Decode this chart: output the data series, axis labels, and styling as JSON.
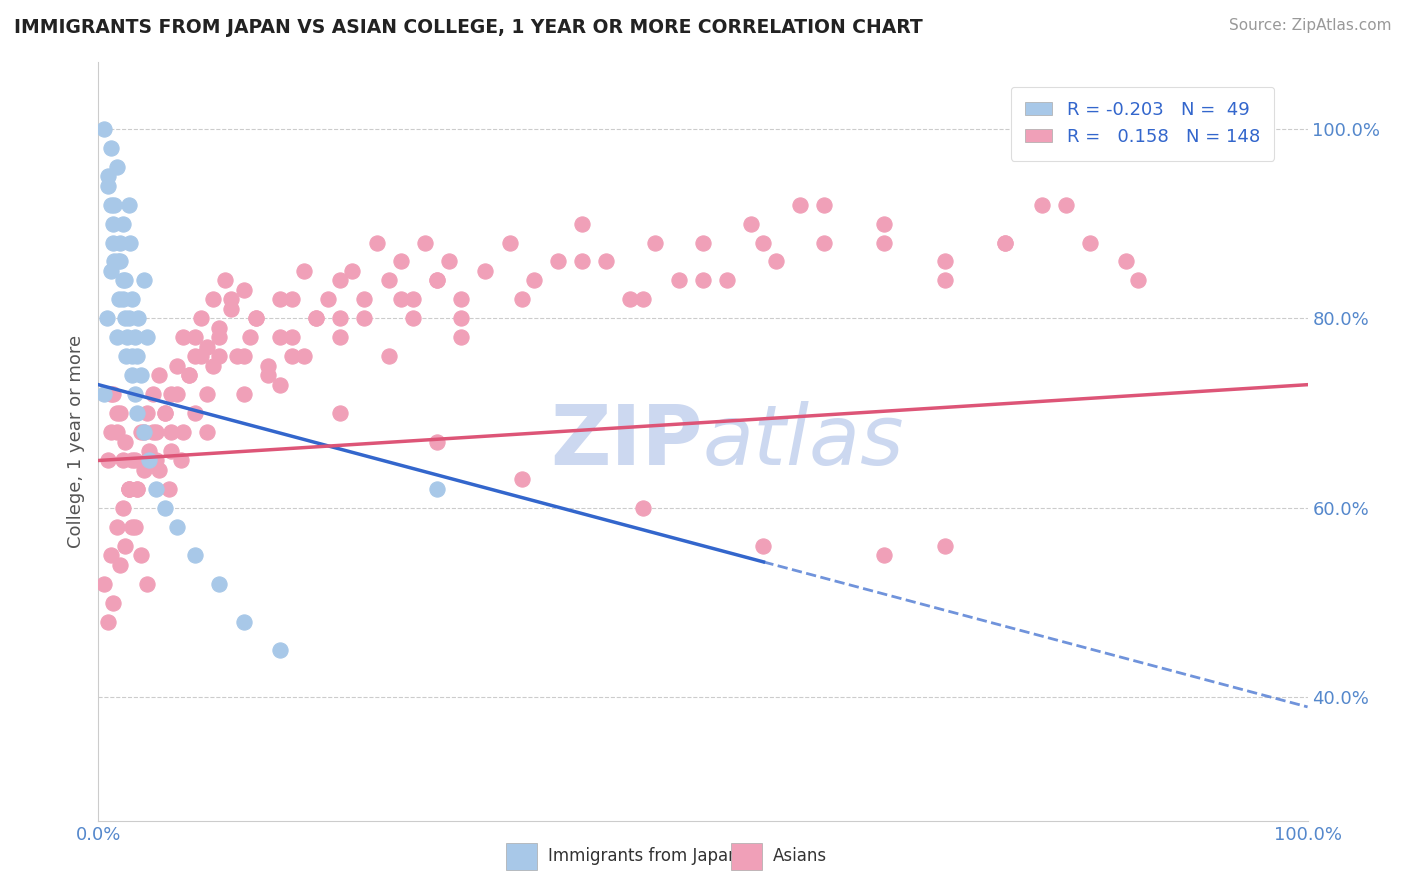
{
  "title": "IMMIGRANTS FROM JAPAN VS ASIAN COLLEGE, 1 YEAR OR MORE CORRELATION CHART",
  "source_text": "Source: ZipAtlas.com",
  "ylabel": "College, 1 year or more",
  "xlim": [
    0.0,
    1.0
  ],
  "ylim": [
    0.27,
    1.07
  ],
  "ytick_labels": [
    "40.0%",
    "60.0%",
    "80.0%",
    "100.0%"
  ],
  "ytick_values": [
    0.4,
    0.6,
    0.8,
    1.0
  ],
  "xtick_labels": [
    "0.0%",
    "100.0%"
  ],
  "xtick_values": [
    0.0,
    1.0
  ],
  "legend_r_blue": "-0.203",
  "legend_n_blue": "49",
  "legend_r_pink": "0.158",
  "legend_n_pink": "148",
  "blue_color": "#a8c8e8",
  "pink_color": "#f0a0b8",
  "blue_line_color": "#3366cc",
  "pink_line_color": "#dd5577",
  "watermark_color": "#ccd8f0",
  "blue_scatter_x": [
    0.005,
    0.007,
    0.01,
    0.012,
    0.013,
    0.015,
    0.017,
    0.018,
    0.02,
    0.022,
    0.023,
    0.025,
    0.026,
    0.028,
    0.03,
    0.032,
    0.033,
    0.035,
    0.038,
    0.04,
    0.008,
    0.01,
    0.012,
    0.015,
    0.018,
    0.02,
    0.022,
    0.025,
    0.028,
    0.03,
    0.005,
    0.008,
    0.01,
    0.013,
    0.016,
    0.02,
    0.024,
    0.028,
    0.032,
    0.038,
    0.042,
    0.048,
    0.055,
    0.065,
    0.08,
    0.1,
    0.12,
    0.15,
    0.28
  ],
  "blue_scatter_y": [
    0.72,
    0.8,
    0.85,
    0.9,
    0.86,
    0.78,
    0.82,
    0.88,
    0.84,
    0.8,
    0.76,
    0.92,
    0.88,
    0.82,
    0.78,
    0.76,
    0.8,
    0.74,
    0.84,
    0.78,
    0.95,
    0.92,
    0.88,
    0.96,
    0.86,
    0.9,
    0.84,
    0.8,
    0.76,
    0.72,
    1.0,
    0.94,
    0.98,
    0.92,
    0.86,
    0.82,
    0.78,
    0.74,
    0.7,
    0.68,
    0.65,
    0.62,
    0.6,
    0.58,
    0.55,
    0.52,
    0.48,
    0.45,
    0.62
  ],
  "pink_scatter_x": [
    0.005,
    0.008,
    0.01,
    0.012,
    0.015,
    0.018,
    0.02,
    0.022,
    0.025,
    0.028,
    0.03,
    0.032,
    0.035,
    0.038,
    0.04,
    0.042,
    0.045,
    0.048,
    0.05,
    0.055,
    0.06,
    0.065,
    0.07,
    0.075,
    0.08,
    0.085,
    0.09,
    0.095,
    0.1,
    0.105,
    0.11,
    0.115,
    0.12,
    0.125,
    0.13,
    0.14,
    0.15,
    0.16,
    0.17,
    0.18,
    0.19,
    0.2,
    0.21,
    0.22,
    0.23,
    0.24,
    0.25,
    0.26,
    0.27,
    0.28,
    0.29,
    0.3,
    0.32,
    0.34,
    0.36,
    0.38,
    0.4,
    0.42,
    0.44,
    0.46,
    0.48,
    0.5,
    0.52,
    0.54,
    0.56,
    0.58,
    0.6,
    0.65,
    0.7,
    0.75,
    0.78,
    0.82,
    0.86,
    0.01,
    0.015,
    0.02,
    0.025,
    0.03,
    0.035,
    0.04,
    0.045,
    0.05,
    0.055,
    0.06,
    0.065,
    0.07,
    0.075,
    0.08,
    0.085,
    0.09,
    0.095,
    0.1,
    0.11,
    0.12,
    0.13,
    0.14,
    0.15,
    0.16,
    0.17,
    0.18,
    0.2,
    0.22,
    0.24,
    0.26,
    0.28,
    0.3,
    0.35,
    0.4,
    0.45,
    0.5,
    0.55,
    0.6,
    0.65,
    0.7,
    0.75,
    0.8,
    0.85,
    0.55,
    0.65,
    0.7,
    0.45,
    0.35,
    0.28,
    0.2,
    0.15,
    0.1,
    0.08,
    0.06,
    0.04,
    0.025,
    0.015,
    0.01,
    0.008,
    0.012,
    0.018,
    0.022,
    0.028,
    0.032,
    0.038,
    0.048,
    0.058,
    0.068,
    0.09,
    0.12,
    0.16,
    0.2,
    0.25,
    0.3
  ],
  "pink_scatter_y": [
    0.52,
    0.48,
    0.55,
    0.5,
    0.58,
    0.54,
    0.6,
    0.56,
    0.62,
    0.58,
    0.65,
    0.62,
    0.68,
    0.64,
    0.7,
    0.66,
    0.72,
    0.68,
    0.74,
    0.7,
    0.72,
    0.75,
    0.78,
    0.74,
    0.76,
    0.8,
    0.77,
    0.82,
    0.79,
    0.84,
    0.81,
    0.76,
    0.83,
    0.78,
    0.8,
    0.75,
    0.82,
    0.78,
    0.85,
    0.8,
    0.82,
    0.78,
    0.85,
    0.82,
    0.88,
    0.84,
    0.86,
    0.82,
    0.88,
    0.84,
    0.86,
    0.82,
    0.85,
    0.88,
    0.84,
    0.86,
    0.9,
    0.86,
    0.82,
    0.88,
    0.84,
    0.88,
    0.84,
    0.9,
    0.86,
    0.92,
    0.88,
    0.9,
    0.86,
    0.88,
    0.92,
    0.88,
    0.84,
    0.72,
    0.68,
    0.65,
    0.62,
    0.58,
    0.55,
    0.52,
    0.68,
    0.64,
    0.7,
    0.66,
    0.72,
    0.68,
    0.74,
    0.7,
    0.76,
    0.72,
    0.75,
    0.78,
    0.82,
    0.76,
    0.8,
    0.74,
    0.78,
    0.82,
    0.76,
    0.8,
    0.84,
    0.8,
    0.76,
    0.8,
    0.84,
    0.8,
    0.82,
    0.86,
    0.82,
    0.84,
    0.88,
    0.92,
    0.88,
    0.84,
    0.88,
    0.92,
    0.86,
    0.56,
    0.55,
    0.56,
    0.6,
    0.63,
    0.67,
    0.7,
    0.73,
    0.76,
    0.78,
    0.68,
    0.65,
    0.62,
    0.7,
    0.68,
    0.65,
    0.72,
    0.7,
    0.67,
    0.65,
    0.62,
    0.68,
    0.65,
    0.62,
    0.65,
    0.68,
    0.72,
    0.76,
    0.8,
    0.82,
    0.78
  ]
}
